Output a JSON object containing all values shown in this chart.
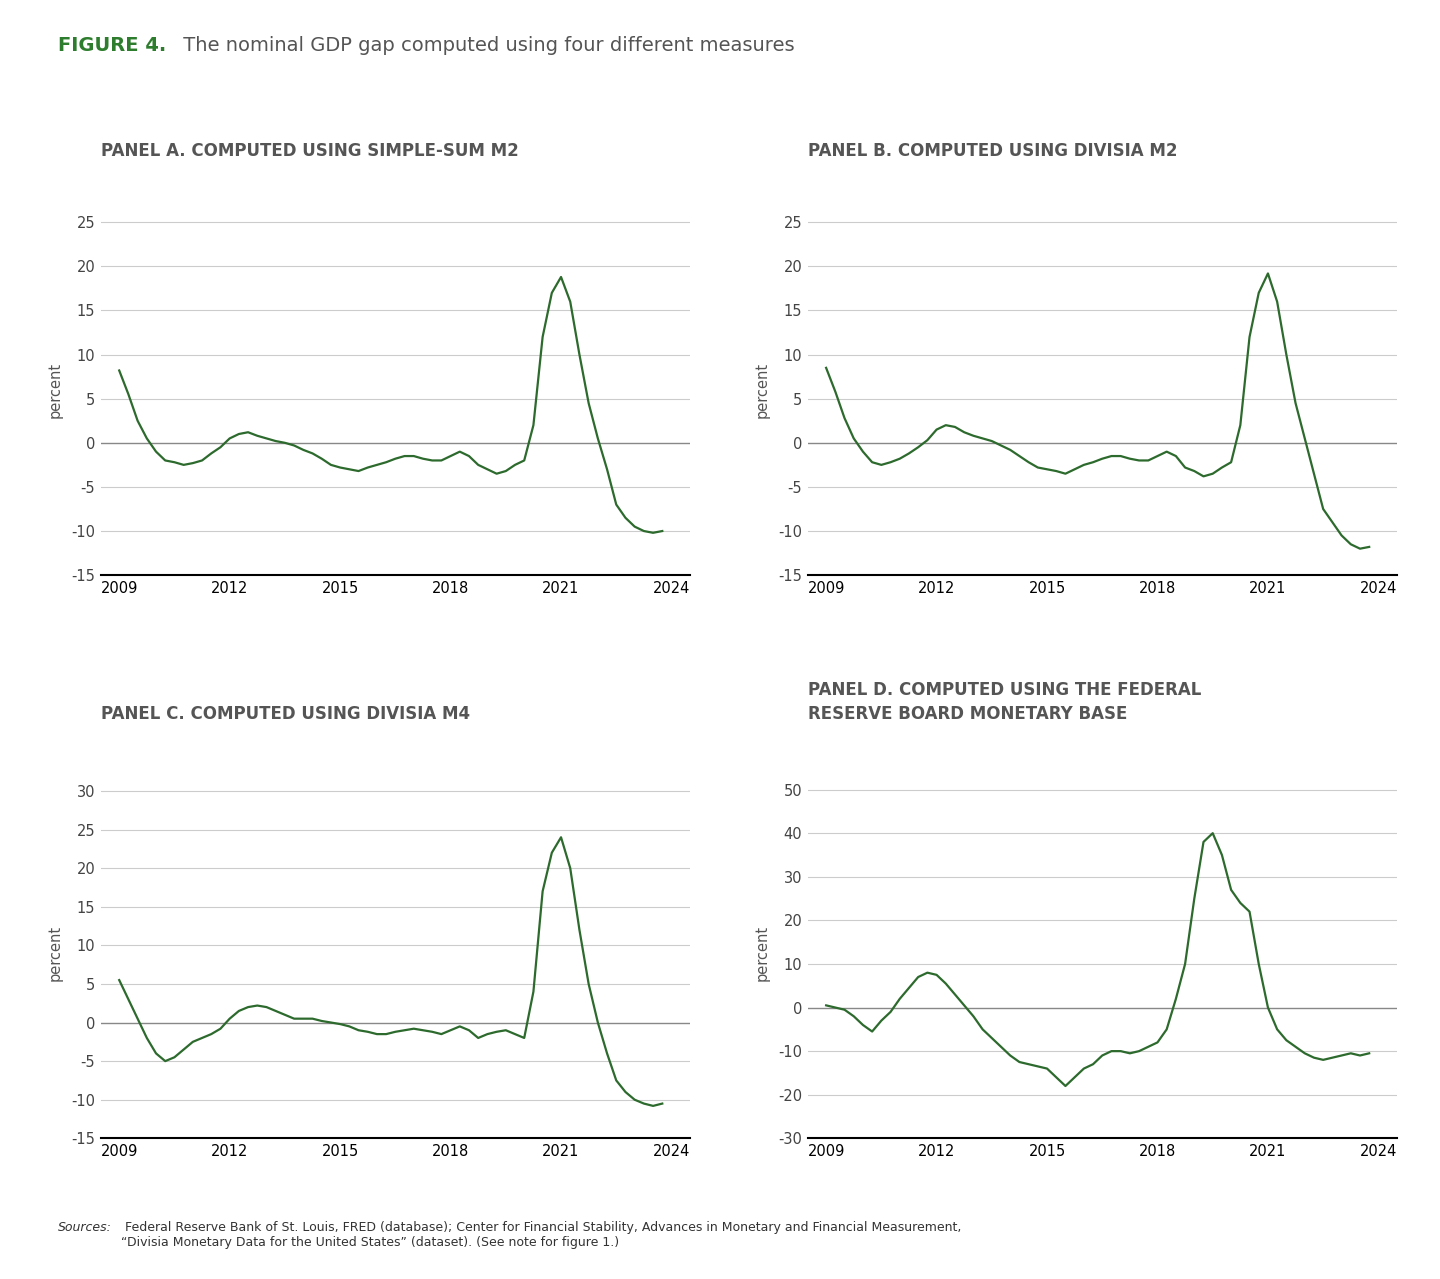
{
  "title_bold": "FIGURE 4.",
  "title_rest": " The nominal GDP gap computed using four different measures",
  "panel_titles": [
    "PANEL A. COMPUTED USING SIMPLE-SUM M2",
    "PANEL B. COMPUTED USING DIVISIA M2",
    "PANEL C. COMPUTED USING DIVISIA M4",
    "PANEL D. COMPUTED USING THE FEDERAL\nRESERVE BOARD MONETARY BASE"
  ],
  "line_color": "#2d6a2d",
  "zero_line_color": "#888888",
  "grid_color": "#cccccc",
  "background_color": "#ffffff",
  "ylabel": "percent",
  "panels_AB": {
    "ylim": [
      -15,
      27
    ],
    "yticks": [
      -15,
      -10,
      -5,
      0,
      5,
      10,
      15,
      20,
      25
    ],
    "xlim": [
      2008.5,
      2024.5
    ],
    "xticks": [
      2009,
      2012,
      2015,
      2018,
      2021,
      2024
    ]
  },
  "panel_C": {
    "ylim": [
      -15,
      33
    ],
    "yticks": [
      -15,
      -10,
      -5,
      0,
      5,
      10,
      15,
      20,
      25,
      30
    ],
    "xlim": [
      2008.5,
      2024.5
    ],
    "xticks": [
      2009,
      2012,
      2015,
      2018,
      2021,
      2024
    ]
  },
  "panel_D": {
    "ylim": [
      -30,
      55
    ],
    "yticks": [
      -30,
      -20,
      -10,
      0,
      10,
      20,
      30,
      40,
      50
    ],
    "xlim": [
      2008.5,
      2024.5
    ],
    "xticks": [
      2009,
      2012,
      2015,
      2018,
      2021,
      2024
    ]
  },
  "panelA_x": [
    2009.0,
    2009.25,
    2009.5,
    2009.75,
    2010.0,
    2010.25,
    2010.5,
    2010.75,
    2011.0,
    2011.25,
    2011.5,
    2011.75,
    2012.0,
    2012.25,
    2012.5,
    2012.75,
    2013.0,
    2013.25,
    2013.5,
    2013.75,
    2014.0,
    2014.25,
    2014.5,
    2014.75,
    2015.0,
    2015.25,
    2015.5,
    2015.75,
    2016.0,
    2016.25,
    2016.5,
    2016.75,
    2017.0,
    2017.25,
    2017.5,
    2017.75,
    2018.0,
    2018.25,
    2018.5,
    2018.75,
    2019.0,
    2019.25,
    2019.5,
    2019.75,
    2020.0,
    2020.25,
    2020.5,
    2020.75,
    2021.0,
    2021.25,
    2021.5,
    2021.75,
    2022.0,
    2022.25,
    2022.5,
    2022.75,
    2023.0,
    2023.25,
    2023.5,
    2023.75
  ],
  "panelA_y": [
    8.2,
    5.5,
    2.5,
    0.5,
    -1.0,
    -2.0,
    -2.2,
    -2.5,
    -2.3,
    -2.0,
    -1.2,
    -0.5,
    0.5,
    1.0,
    1.2,
    0.8,
    0.5,
    0.2,
    0.0,
    -0.3,
    -0.8,
    -1.2,
    -1.8,
    -2.5,
    -2.8,
    -3.0,
    -3.2,
    -2.8,
    -2.5,
    -2.2,
    -1.8,
    -1.5,
    -1.5,
    -1.8,
    -2.0,
    -2.0,
    -1.5,
    -1.0,
    -1.5,
    -2.5,
    -3.0,
    -3.5,
    -3.2,
    -2.5,
    -2.0,
    2.0,
    12.0,
    17.0,
    18.8,
    16.0,
    10.0,
    4.5,
    0.5,
    -3.0,
    -7.0,
    -8.5,
    -9.5,
    -10.0,
    -10.2,
    -10.0
  ],
  "panelB_x": [
    2009.0,
    2009.25,
    2009.5,
    2009.75,
    2010.0,
    2010.25,
    2010.5,
    2010.75,
    2011.0,
    2011.25,
    2011.5,
    2011.75,
    2012.0,
    2012.25,
    2012.5,
    2012.75,
    2013.0,
    2013.25,
    2013.5,
    2013.75,
    2014.0,
    2014.25,
    2014.5,
    2014.75,
    2015.0,
    2015.25,
    2015.5,
    2015.75,
    2016.0,
    2016.25,
    2016.5,
    2016.75,
    2017.0,
    2017.25,
    2017.5,
    2017.75,
    2018.0,
    2018.25,
    2018.5,
    2018.75,
    2019.0,
    2019.25,
    2019.5,
    2019.75,
    2020.0,
    2020.25,
    2020.5,
    2020.75,
    2021.0,
    2021.25,
    2021.5,
    2021.75,
    2022.0,
    2022.25,
    2022.5,
    2022.75,
    2023.0,
    2023.25,
    2023.5,
    2023.75
  ],
  "panelB_y": [
    8.5,
    5.8,
    2.8,
    0.5,
    -1.0,
    -2.2,
    -2.5,
    -2.2,
    -1.8,
    -1.2,
    -0.5,
    0.3,
    1.5,
    2.0,
    1.8,
    1.2,
    0.8,
    0.5,
    0.2,
    -0.3,
    -0.8,
    -1.5,
    -2.2,
    -2.8,
    -3.0,
    -3.2,
    -3.5,
    -3.0,
    -2.5,
    -2.2,
    -1.8,
    -1.5,
    -1.5,
    -1.8,
    -2.0,
    -2.0,
    -1.5,
    -1.0,
    -1.5,
    -2.8,
    -3.2,
    -3.8,
    -3.5,
    -2.8,
    -2.2,
    2.0,
    12.0,
    17.0,
    19.2,
    16.0,
    10.0,
    4.5,
    0.5,
    -3.5,
    -7.5,
    -9.0,
    -10.5,
    -11.5,
    -12.0,
    -11.8
  ],
  "panelC_x": [
    2009.0,
    2009.25,
    2009.5,
    2009.75,
    2010.0,
    2010.25,
    2010.5,
    2010.75,
    2011.0,
    2011.25,
    2011.5,
    2011.75,
    2012.0,
    2012.25,
    2012.5,
    2012.75,
    2013.0,
    2013.25,
    2013.5,
    2013.75,
    2014.0,
    2014.25,
    2014.5,
    2014.75,
    2015.0,
    2015.25,
    2015.5,
    2015.75,
    2016.0,
    2016.25,
    2016.5,
    2016.75,
    2017.0,
    2017.25,
    2017.5,
    2017.75,
    2018.0,
    2018.25,
    2018.5,
    2018.75,
    2019.0,
    2019.25,
    2019.5,
    2019.75,
    2020.0,
    2020.25,
    2020.5,
    2020.75,
    2021.0,
    2021.25,
    2021.5,
    2021.75,
    2022.0,
    2022.25,
    2022.5,
    2022.75,
    2023.0,
    2023.25,
    2023.5,
    2023.75
  ],
  "panelC_y": [
    5.5,
    3.0,
    0.5,
    -2.0,
    -4.0,
    -5.0,
    -4.5,
    -3.5,
    -2.5,
    -2.0,
    -1.5,
    -0.8,
    0.5,
    1.5,
    2.0,
    2.2,
    2.0,
    1.5,
    1.0,
    0.5,
    0.5,
    0.5,
    0.2,
    0.0,
    -0.2,
    -0.5,
    -1.0,
    -1.2,
    -1.5,
    -1.5,
    -1.2,
    -1.0,
    -0.8,
    -1.0,
    -1.2,
    -1.5,
    -1.0,
    -0.5,
    -1.0,
    -2.0,
    -1.5,
    -1.2,
    -1.0,
    -1.5,
    -2.0,
    4.0,
    17.0,
    22.0,
    24.0,
    20.0,
    12.0,
    5.0,
    0.0,
    -4.0,
    -7.5,
    -9.0,
    -10.0,
    -10.5,
    -10.8,
    -10.5
  ],
  "panelD_x": [
    2009.0,
    2009.25,
    2009.5,
    2009.75,
    2010.0,
    2010.25,
    2010.5,
    2010.75,
    2011.0,
    2011.25,
    2011.5,
    2011.75,
    2012.0,
    2012.25,
    2012.5,
    2012.75,
    2013.0,
    2013.25,
    2013.5,
    2013.75,
    2014.0,
    2014.25,
    2014.5,
    2014.75,
    2015.0,
    2015.25,
    2015.5,
    2015.75,
    2016.0,
    2016.25,
    2016.5,
    2016.75,
    2017.0,
    2017.25,
    2017.5,
    2017.75,
    2018.0,
    2018.25,
    2018.5,
    2018.75,
    2019.0,
    2019.25,
    2019.5,
    2019.75,
    2020.0,
    2020.25,
    2020.5,
    2020.75,
    2021.0,
    2021.25,
    2021.5,
    2021.75,
    2022.0,
    2022.25,
    2022.5,
    2022.75,
    2023.0,
    2023.25,
    2023.5,
    2023.75
  ],
  "panelD_y": [
    0.5,
    0.0,
    -0.5,
    -2.0,
    -4.0,
    -5.5,
    -3.0,
    -1.0,
    2.0,
    4.5,
    7.0,
    8.0,
    7.5,
    5.5,
    3.0,
    0.5,
    -2.0,
    -5.0,
    -7.0,
    -9.0,
    -11.0,
    -12.5,
    -13.0,
    -13.5,
    -14.0,
    -16.0,
    -18.0,
    -16.0,
    -14.0,
    -13.0,
    -11.0,
    -10.0,
    -10.0,
    -10.5,
    -10.0,
    -9.0,
    -8.0,
    -5.0,
    2.0,
    10.0,
    25.0,
    38.0,
    40.0,
    35.0,
    27.0,
    24.0,
    22.0,
    10.0,
    0.0,
    -5.0,
    -7.5,
    -9.0,
    -10.5,
    -11.5,
    -12.0,
    -11.5,
    -11.0,
    -10.5,
    -11.0,
    -10.5
  ],
  "footnote_italic": "Sources:",
  "footnote_rest": " Federal Reserve Bank of St. Louis, FRED (database); Center for Financial Stability, Advances in Monetary and Financial Measurement,\n“Divisia Monetary Data for the United States” (dataset). (See note for figure 1.)"
}
